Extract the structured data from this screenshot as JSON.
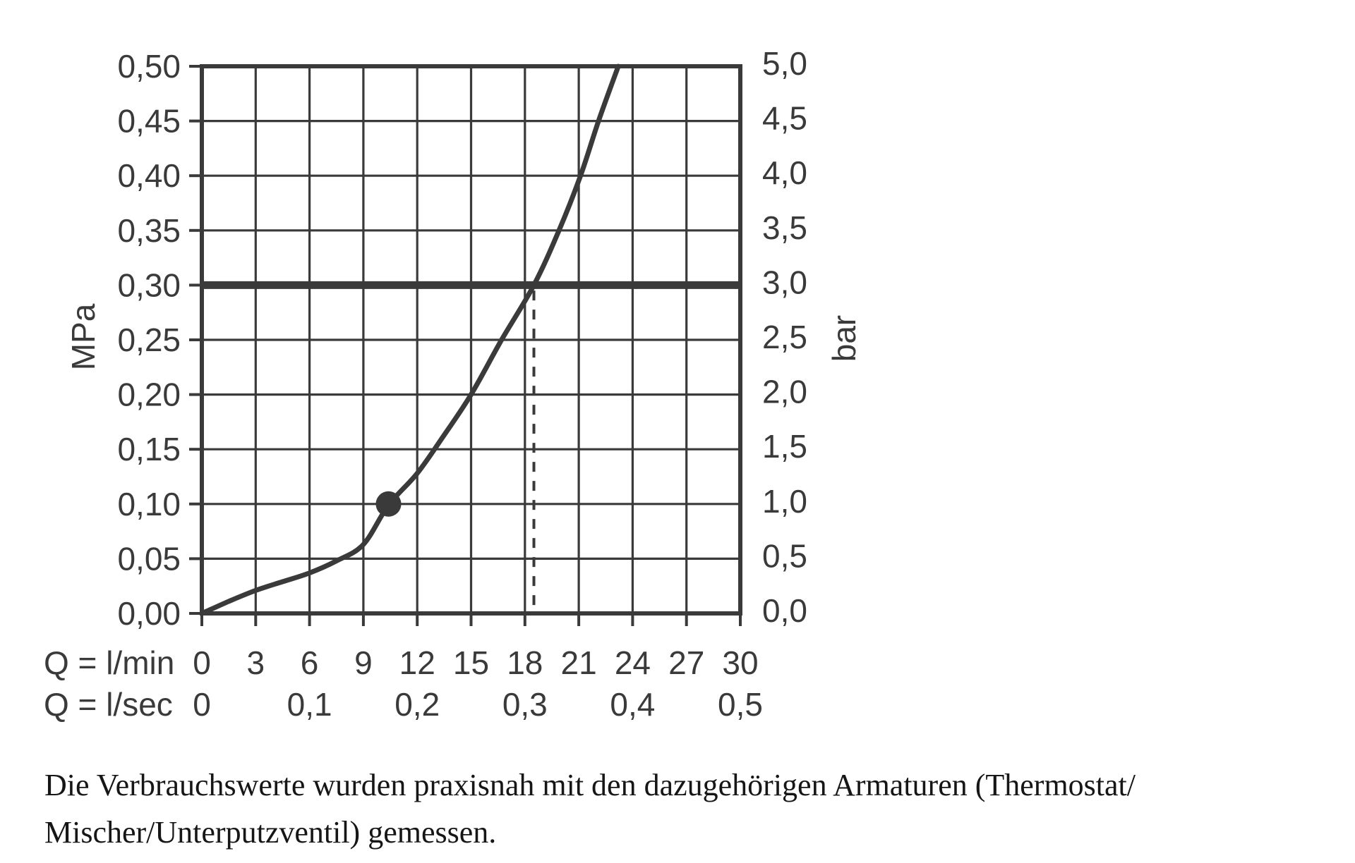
{
  "chart_data": {
    "type": "line",
    "title": "",
    "x_axis": {
      "row_label_lmin": "Q = l/min",
      "row_label_lsec": "Q = l/sec",
      "lmin_ticks": [
        "0",
        "3",
        "6",
        "9",
        "12",
        "15",
        "18",
        "21",
        "24",
        "27",
        "30"
      ],
      "lmin_tick_values": [
        0,
        3,
        6,
        9,
        12,
        15,
        18,
        21,
        24,
        27,
        30
      ],
      "lsec_ticks": [
        "0",
        "0,1",
        "0,2",
        "0,3",
        "0,4",
        "0,5"
      ],
      "lsec_tick_positions_lmin": [
        0,
        6,
        12,
        18,
        24,
        30
      ],
      "range_lmin": [
        0,
        30
      ]
    },
    "y_axis_left": {
      "unit": "MPa",
      "tick_labels": [
        "0,00",
        "0,05",
        "0,10",
        "0,15",
        "0,20",
        "0,25",
        "0,30",
        "0,35",
        "0,40",
        "0,45",
        "0,50"
      ],
      "range_mpa": [
        0,
        0.5
      ],
      "step_mpa": 0.05
    },
    "y_axis_right": {
      "unit": "bar",
      "tick_labels": [
        "0,0",
        "0,5",
        "1,0",
        "1,5",
        "2,0",
        "2,5",
        "3,0",
        "3,5",
        "4,0",
        "4,5",
        "5,0"
      ],
      "range_bar": [
        0,
        5
      ],
      "step_bar": 0.5
    },
    "grid": {
      "on": true,
      "x_step_lmin": 3,
      "y_step_mpa": 0.05
    },
    "series": [
      {
        "name": "flow-pressure-curve",
        "points_lmin_mpa": [
          [
            0,
            0
          ],
          [
            1.5,
            0.011
          ],
          [
            3,
            0.021
          ],
          [
            4.5,
            0.029
          ],
          [
            6,
            0.037
          ],
          [
            7.5,
            0.048
          ],
          [
            9,
            0.063
          ],
          [
            10.4,
            0.099
          ],
          [
            12,
            0.128
          ],
          [
            13.5,
            0.163
          ],
          [
            15,
            0.2
          ],
          [
            16.7,
            0.25
          ],
          [
            18.5,
            0.3
          ],
          [
            19.9,
            0.35
          ],
          [
            21.1,
            0.4
          ],
          [
            22.1,
            0.45
          ],
          [
            23.2,
            0.5
          ]
        ]
      }
    ],
    "reference_line": {
      "orientation": "horizontal",
      "value_mpa": 0.3,
      "value_bar": 3.0
    },
    "guide_line": {
      "style": "dashed-vertical",
      "at_lmin": 18.5,
      "from_mpa": 0.295,
      "to_mpa": 0
    },
    "marker_point": {
      "lmin": 10.4,
      "mpa": 0.1
    },
    "colors": {
      "ink": "#3a3a3a",
      "background": "#ffffff",
      "caption_text": "#161616"
    },
    "legend": {
      "position": "none"
    }
  },
  "caption": {
    "line1": "Die Verbrauchswerte wurden praxisnah mit den dazugehörigen Armaturen (Thermostat/",
    "line2": "Mischer/Unterputzventil) gemessen."
  }
}
